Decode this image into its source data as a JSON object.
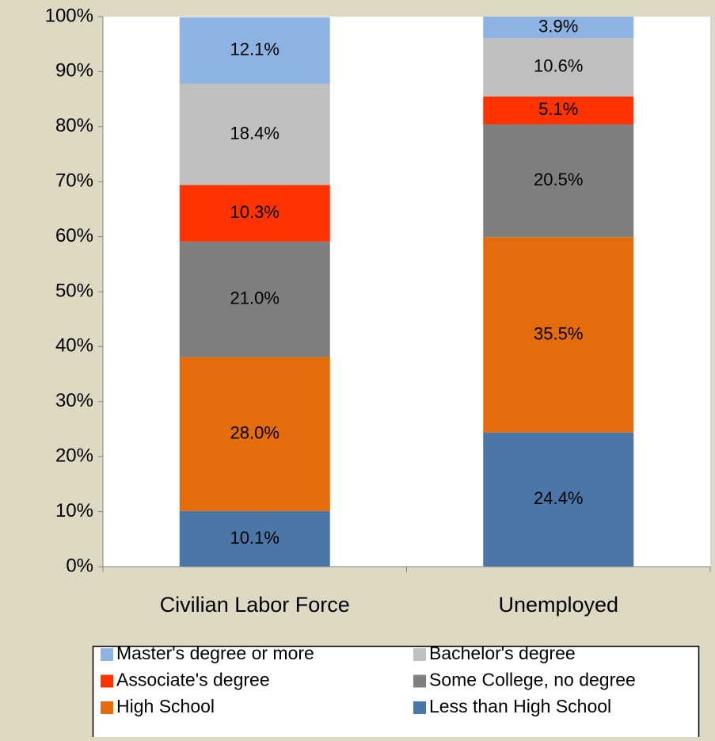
{
  "chart_data": {
    "type": "stacked-bar",
    "categories": [
      "Civilian Labor Force",
      "Unemployed"
    ],
    "series": [
      {
        "name": "Less than High School",
        "color": "#4a76a8",
        "values": [
          10.1,
          24.4
        ],
        "value_labels": [
          "10.1%",
          "24.4%"
        ]
      },
      {
        "name": "High School",
        "color": "#e46c0a",
        "values": [
          28.0,
          35.5
        ],
        "value_labels": [
          "28.0%",
          "35.5%"
        ]
      },
      {
        "name": "Some College, no degree",
        "color": "#7f7f7f",
        "values": [
          21.0,
          20.5
        ],
        "value_labels": [
          "21.0%",
          "20.5%"
        ]
      },
      {
        "name": "Associate's degree",
        "color": "#ff3300",
        "values": [
          10.3,
          5.1
        ],
        "value_labels": [
          "10.3%",
          "5.1%"
        ]
      },
      {
        "name": "Bachelor's degree",
        "color": "#bfbfbf",
        "values": [
          18.4,
          10.6
        ],
        "value_labels": [
          "18.4%",
          "10.6%"
        ]
      },
      {
        "name": "Master's degree or more",
        "color": "#8db3e2",
        "values": [
          12.1,
          3.9
        ],
        "value_labels": [
          "12.1%",
          "3.9%"
        ]
      }
    ],
    "ylim": [
      0,
      100
    ],
    "yticks": [
      {
        "value": 0,
        "label": "0%"
      },
      {
        "value": 10,
        "label": "10%"
      },
      {
        "value": 20,
        "label": "20%"
      },
      {
        "value": 30,
        "label": "30%"
      },
      {
        "value": 40,
        "label": "40%"
      },
      {
        "value": 50,
        "label": "50%"
      },
      {
        "value": 60,
        "label": "60%"
      },
      {
        "value": 70,
        "label": "70%"
      },
      {
        "value": 80,
        "label": "80%"
      },
      {
        "value": 90,
        "label": "90%"
      },
      {
        "value": 100,
        "label": "100%"
      }
    ],
    "legend": "bottom"
  }
}
